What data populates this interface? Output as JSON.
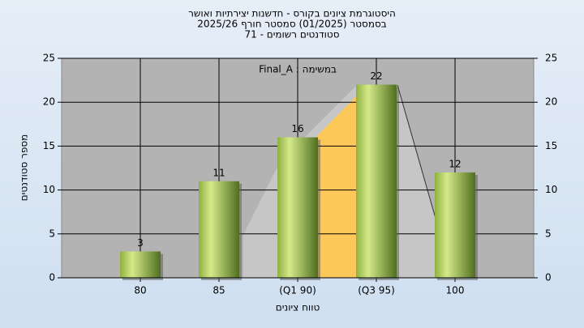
{
  "chart_data": {
    "type": "bar",
    "title": "היסטוגרמת ציונים בקורס - חדשנות יצירתיות ואושר",
    "subtitle": [
      "בסמסטר  (01/2025)  סמסטר חורף 2025/26",
      "סטודנטים רשומים - 71"
    ],
    "annotation": "Final_A : במשימה",
    "y_label": "מספר סטודנטים",
    "x_label": "טווח ציונים",
    "categories": [
      "80",
      "85",
      "(Q1 90)",
      "(Q3 95)",
      "100"
    ],
    "values": [
      3,
      11,
      16,
      22,
      12
    ],
    "ylim": [
      0,
      25
    ],
    "yticks": [
      0,
      5,
      10,
      15,
      20,
      25
    ],
    "y2lim": [
      0,
      25
    ],
    "y2ticks": [
      0,
      5,
      10,
      15,
      20,
      25
    ],
    "grid": true
  }
}
